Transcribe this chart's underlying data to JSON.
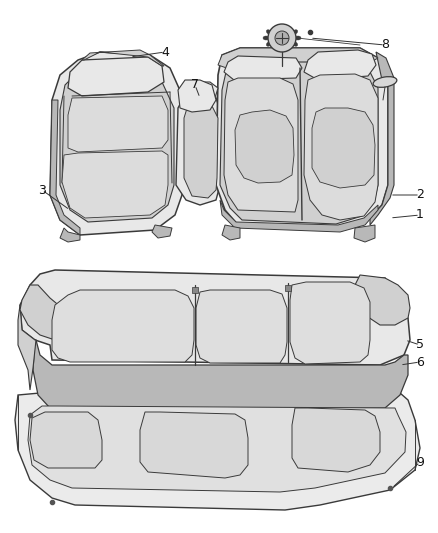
{
  "background_color": "#ffffff",
  "fig_width": 4.38,
  "fig_height": 5.33,
  "dpi": 100,
  "line_color": "#3a3a3a",
  "fill_light": "#e8e8e8",
  "fill_mid": "#d0d0d0",
  "fill_dark": "#b8b8b8",
  "fill_side": "#c0c0c0"
}
